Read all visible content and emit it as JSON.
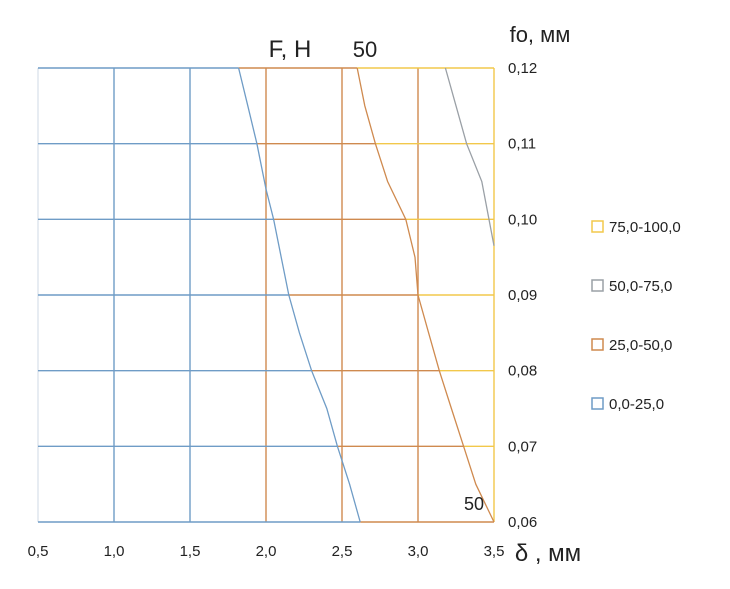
{
  "chart_data": {
    "type": "contour",
    "title_left": "F, Н",
    "title_center": "50",
    "y_axis_title": "fo, мм",
    "x_axis_title": "δ , мм",
    "contour_label": "50",
    "x_ticks": [
      "0,5",
      "1,0",
      "1,5",
      "2,0",
      "2,5",
      "3,0",
      "3,5"
    ],
    "x_tick_values": [
      0.5,
      1.0,
      1.5,
      2.0,
      2.5,
      3.0,
      3.5
    ],
    "y_ticks": [
      "0,06",
      "0,07",
      "0,08",
      "0,09",
      "0,10",
      "0,11",
      "0,12"
    ],
    "y_tick_values": [
      0.06,
      0.07,
      0.08,
      0.09,
      0.1,
      0.11,
      0.12
    ],
    "xlim": [
      0.5,
      3.5
    ],
    "ylim": [
      0.06,
      0.12
    ],
    "grid": true,
    "legend_position": "right",
    "legend": [
      {
        "label": "75,0-100,0",
        "color": "#f2c84b"
      },
      {
        "label": "50,0-75,0",
        "color": "#9aa0a6"
      },
      {
        "label": "25,0-50,0",
        "color": "#cf8a4f"
      },
      {
        "label": "0,0-25,0",
        "color": "#6f9cc6"
      }
    ],
    "region_bands": [
      {
        "range": "0,0-25,0",
        "color": "#6f9cc6"
      },
      {
        "range": "25,0-50,0",
        "color": "#cf8a4f"
      },
      {
        "range": "50,0-75,0",
        "color": "#9aa0a6"
      },
      {
        "range": "75,0-100,0",
        "color": "#f2c84b"
      }
    ],
    "contours": [
      {
        "level": "25",
        "color": "#6f9cc6",
        "points": [
          [
            1.82,
            0.12
          ],
          [
            1.88,
            0.115
          ],
          [
            1.94,
            0.11
          ],
          [
            2.0,
            0.104
          ],
          [
            2.05,
            0.1
          ],
          [
            2.1,
            0.095
          ],
          [
            2.15,
            0.09
          ],
          [
            2.22,
            0.085
          ],
          [
            2.3,
            0.08
          ],
          [
            2.4,
            0.075
          ],
          [
            2.47,
            0.07
          ],
          [
            2.55,
            0.065
          ],
          [
            2.62,
            0.06
          ]
        ]
      },
      {
        "level": "50",
        "color": "#cf8a4f",
        "points": [
          [
            2.6,
            0.12
          ],
          [
            2.65,
            0.115
          ],
          [
            2.72,
            0.11
          ],
          [
            2.8,
            0.105
          ],
          [
            2.92,
            0.1
          ],
          [
            2.98,
            0.095
          ],
          [
            3.0,
            0.09
          ],
          [
            3.07,
            0.085
          ],
          [
            3.14,
            0.08
          ],
          [
            3.22,
            0.075
          ],
          [
            3.3,
            0.07
          ],
          [
            3.38,
            0.065
          ],
          [
            3.5,
            0.06
          ]
        ]
      },
      {
        "level": "75",
        "color": "#9aa0a6",
        "points": [
          [
            3.18,
            0.12
          ],
          [
            3.25,
            0.115
          ],
          [
            3.32,
            0.11
          ],
          [
            3.42,
            0.105
          ],
          [
            3.5,
            0.0965
          ]
        ]
      }
    ]
  }
}
